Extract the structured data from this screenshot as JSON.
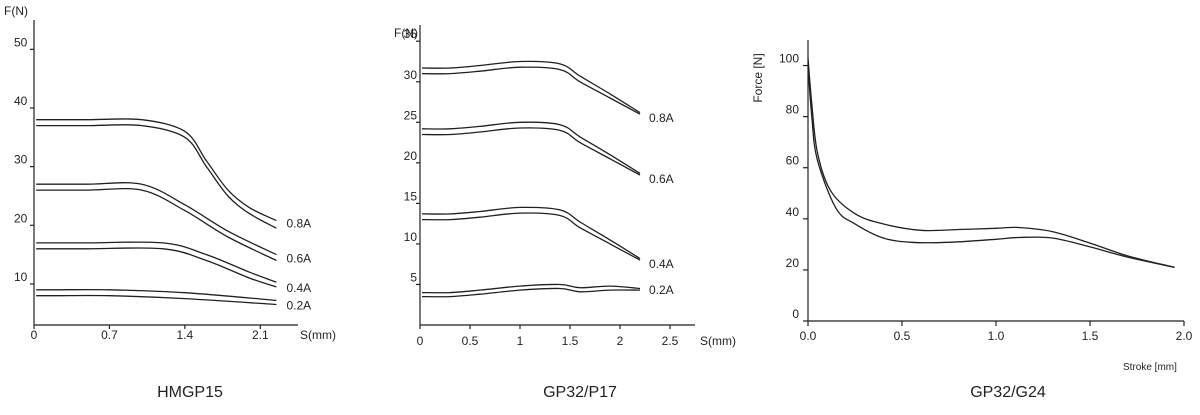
{
  "colors": {
    "ink": "#231f20",
    "background": "#ffffff"
  },
  "chart_data": [
    {
      "type": "line",
      "caption": "HMGP15",
      "ylabel": "F(N)",
      "xlabel": "S(mm)",
      "x_ticks": [
        "0",
        "0.7",
        "1.4",
        "2.1"
      ],
      "y_ticks": [
        "10",
        "20",
        "30",
        "40",
        "50"
      ],
      "xlim": [
        0,
        2.45
      ],
      "ylim": [
        3,
        55
      ],
      "grid": false,
      "legend": "none",
      "series": [
        {
          "name": "0.8A",
          "points": [
            [
              0.02,
              37
            ],
            [
              0.1,
              37
            ],
            [
              0.5,
              37
            ],
            [
              1.0,
              37
            ],
            [
              1.4,
              35
            ],
            [
              1.6,
              30
            ],
            [
              1.8,
              25
            ],
            [
              2.0,
              22
            ],
            [
              2.25,
              19.5
            ]
          ]
        },
        {
          "name": "0.8A",
          "points": [
            [
              0.02,
              38
            ],
            [
              0.1,
              38
            ],
            [
              0.5,
              38
            ],
            [
              1.0,
              38
            ],
            [
              1.4,
              36
            ],
            [
              1.6,
              31
            ],
            [
              1.8,
              26
            ],
            [
              2.0,
              23
            ],
            [
              2.25,
              20.8
            ]
          ]
        },
        {
          "name": "0.6A",
          "points": [
            [
              0.02,
              26
            ],
            [
              0.1,
              26
            ],
            [
              0.5,
              26
            ],
            [
              1.0,
              26
            ],
            [
              1.4,
              22.5
            ],
            [
              1.8,
              18
            ],
            [
              2.25,
              14
            ]
          ]
        },
        {
          "name": "0.6A",
          "points": [
            [
              0.02,
              27
            ],
            [
              0.1,
              27
            ],
            [
              0.5,
              27
            ],
            [
              1.0,
              27
            ],
            [
              1.4,
              23.5
            ],
            [
              1.8,
              19
            ],
            [
              2.25,
              15
            ]
          ]
        },
        {
          "name": "0.4A",
          "points": [
            [
              0.02,
              16
            ],
            [
              0.1,
              16
            ],
            [
              0.5,
              16
            ],
            [
              1.2,
              16
            ],
            [
              1.6,
              14
            ],
            [
              2.0,
              11
            ],
            [
              2.25,
              9.5
            ]
          ]
        },
        {
          "name": "0.4A",
          "points": [
            [
              0.02,
              17
            ],
            [
              0.1,
              17
            ],
            [
              0.5,
              17
            ],
            [
              1.2,
              17
            ],
            [
              1.6,
              15
            ],
            [
              2.0,
              12
            ],
            [
              2.25,
              10.3
            ]
          ]
        },
        {
          "name": "0.2A",
          "points": [
            [
              0.02,
              8
            ],
            [
              0.2,
              8
            ],
            [
              0.7,
              8
            ],
            [
              1.4,
              7.5
            ],
            [
              2.25,
              6.5
            ]
          ]
        },
        {
          "name": "0.2A",
          "points": [
            [
              0.02,
              9
            ],
            [
              0.2,
              9
            ],
            [
              0.7,
              9
            ],
            [
              1.4,
              8.5
            ],
            [
              2.25,
              7.2
            ]
          ]
        }
      ],
      "end_labels": [
        {
          "text": "0.8A",
          "y": 20.3
        },
        {
          "text": "0.6A",
          "y": 14.3
        },
        {
          "text": "0.4A",
          "y": 9.3
        },
        {
          "text": "0.2A",
          "y": 6.3
        }
      ]
    },
    {
      "type": "line",
      "caption": "GP32/P17",
      "ylabel": "F(N)",
      "xlabel": "S(mm)",
      "x_ticks": [
        "0",
        "0.5",
        "1",
        "1.5",
        "2",
        "2.5"
      ],
      "y_ticks": [
        "5",
        "10",
        "15",
        "20",
        "25",
        "30",
        "35"
      ],
      "xlim": [
        0,
        2.75
      ],
      "ylim": [
        0,
        37
      ],
      "grid": false,
      "legend": "none",
      "series": [
        {
          "name": "0.8A",
          "points": [
            [
              0.02,
              31
            ],
            [
              0.3,
              31
            ],
            [
              0.6,
              31.3
            ],
            [
              1.0,
              31.8
            ],
            [
              1.4,
              31.5
            ],
            [
              1.6,
              30
            ],
            [
              1.9,
              28
            ],
            [
              2.2,
              26
            ]
          ]
        },
        {
          "name": "0.8A",
          "points": [
            [
              0.02,
              31.7
            ],
            [
              0.3,
              31.7
            ],
            [
              0.6,
              32
            ],
            [
              1.0,
              32.5
            ],
            [
              1.4,
              32.2
            ],
            [
              1.6,
              30.7
            ],
            [
              1.9,
              28.5
            ],
            [
              2.2,
              26.2
            ]
          ]
        },
        {
          "name": "0.6A",
          "points": [
            [
              0.02,
              23.5
            ],
            [
              0.3,
              23.5
            ],
            [
              0.6,
              23.8
            ],
            [
              1.0,
              24.3
            ],
            [
              1.4,
              24
            ],
            [
              1.6,
              22.5
            ],
            [
              1.9,
              20.5
            ],
            [
              2.2,
              18.5
            ]
          ]
        },
        {
          "name": "0.6A",
          "points": [
            [
              0.02,
              24.2
            ],
            [
              0.3,
              24.2
            ],
            [
              0.6,
              24.5
            ],
            [
              1.0,
              25
            ],
            [
              1.4,
              24.7
            ],
            [
              1.6,
              23.2
            ],
            [
              1.9,
              21
            ],
            [
              2.2,
              18.7
            ]
          ]
        },
        {
          "name": "0.4A",
          "points": [
            [
              0.02,
              13
            ],
            [
              0.3,
              13
            ],
            [
              0.6,
              13.3
            ],
            [
              1.0,
              13.8
            ],
            [
              1.4,
              13.5
            ],
            [
              1.6,
              12
            ],
            [
              1.9,
              10
            ],
            [
              2.2,
              8
            ]
          ]
        },
        {
          "name": "0.4A",
          "points": [
            [
              0.02,
              13.7
            ],
            [
              0.3,
              13.7
            ],
            [
              0.6,
              14
            ],
            [
              1.0,
              14.5
            ],
            [
              1.4,
              14.2
            ],
            [
              1.6,
              12.7
            ],
            [
              1.9,
              10.5
            ],
            [
              2.2,
              8.2
            ]
          ]
        },
        {
          "name": "0.2A",
          "points": [
            [
              0.02,
              3.5
            ],
            [
              0.3,
              3.5
            ],
            [
              0.6,
              3.8
            ],
            [
              1.0,
              4.3
            ],
            [
              1.4,
              4.5
            ],
            [
              1.6,
              4.1
            ],
            [
              1.9,
              4.3
            ],
            [
              2.2,
              4.3
            ]
          ]
        },
        {
          "name": "0.2A",
          "points": [
            [
              0.02,
              4
            ],
            [
              0.3,
              4
            ],
            [
              0.6,
              4.3
            ],
            [
              1.0,
              4.8
            ],
            [
              1.4,
              5
            ],
            [
              1.6,
              4.6
            ],
            [
              1.9,
              4.8
            ],
            [
              2.2,
              4.5
            ]
          ]
        }
      ],
      "end_labels": [
        {
          "text": "0.8A",
          "y": 25.5
        },
        {
          "text": "0.6A",
          "y": 18
        },
        {
          "text": "0.4A",
          "y": 7.5
        },
        {
          "text": "0.2A",
          "y": 4.3
        }
      ]
    },
    {
      "type": "line",
      "caption": "GP32/G24",
      "ylabel": "Force [N]",
      "xlabel": "Stroke [mm]",
      "x_ticks": [
        "0.0",
        "0.5",
        "1.0",
        "1.5",
        "2.0"
      ],
      "y_ticks": [
        "0",
        "20",
        "40",
        "60",
        "80",
        "100"
      ],
      "xlim": [
        0,
        2.0
      ],
      "ylim": [
        0,
        110
      ],
      "grid": false,
      "legend": "none",
      "series": [
        {
          "name": "",
          "points": [
            [
              0.0,
              103
            ],
            [
              0.02,
              85
            ],
            [
              0.05,
              66
            ],
            [
              0.12,
              51
            ],
            [
              0.25,
              42
            ],
            [
              0.4,
              38
            ],
            [
              0.6,
              35.5
            ],
            [
              0.8,
              35.8
            ],
            [
              1.0,
              36.3
            ],
            [
              1.12,
              36.6
            ],
            [
              1.3,
              35
            ],
            [
              1.5,
              30.5
            ],
            [
              1.7,
              25.5
            ],
            [
              1.95,
              21
            ]
          ]
        },
        {
          "name": "",
          "points": [
            [
              0.0,
              100
            ],
            [
              0.02,
              80
            ],
            [
              0.05,
              63
            ],
            [
              0.15,
              44
            ],
            [
              0.25,
              38
            ],
            [
              0.4,
              32.5
            ],
            [
              0.55,
              30.8
            ],
            [
              0.75,
              30.8
            ],
            [
              1.0,
              32
            ],
            [
              1.12,
              32.7
            ],
            [
              1.3,
              32.5
            ],
            [
              1.5,
              29
            ],
            [
              1.7,
              25
            ],
            [
              1.95,
              21
            ]
          ]
        }
      ],
      "end_labels": []
    }
  ]
}
